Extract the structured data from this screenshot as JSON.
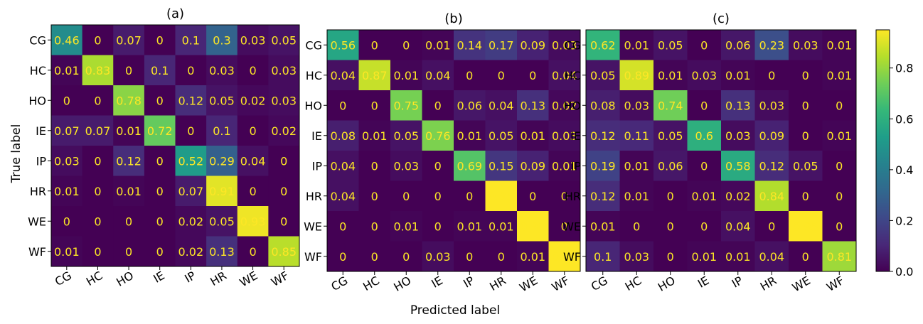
{
  "chart_data": [
    {
      "type": "heatmap",
      "title": "(a)",
      "xlabel": "",
      "ylabel": "True label",
      "x": [
        "CG",
        "HC",
        "HO",
        "IE",
        "IP",
        "HR",
        "WE",
        "WF"
      ],
      "y": [
        "CG",
        "HC",
        "HO",
        "IE",
        "IP",
        "HR",
        "WE",
        "WF"
      ],
      "values": [
        [
          0.46,
          0,
          0.07,
          0,
          0.1,
          0.3,
          0.03,
          0.05
        ],
        [
          0.01,
          0.83,
          0,
          0.1,
          0,
          0.03,
          0,
          0.03
        ],
        [
          0,
          0,
          0.78,
          0,
          0.12,
          0.05,
          0.02,
          0.03
        ],
        [
          0.07,
          0.07,
          0.01,
          0.72,
          0,
          0.1,
          0,
          0.02
        ],
        [
          0.03,
          0,
          0.12,
          0,
          0.52,
          0.29,
          0.04,
          0
        ],
        [
          0.01,
          0,
          0.01,
          0,
          0.07,
          0.91,
          0,
          0
        ],
        [
          0,
          0,
          0,
          0,
          0.02,
          0.05,
          0.93,
          0
        ],
        [
          0.01,
          0,
          0,
          0,
          0.02,
          0.13,
          0,
          0.85
        ]
      ]
    },
    {
      "type": "heatmap",
      "title": "(b)",
      "xlabel": "Predicted label",
      "ylabel": "",
      "x": [
        "CG",
        "HC",
        "HO",
        "IE",
        "IP",
        "HR",
        "WE",
        "WF"
      ],
      "y": [
        "CG",
        "HC",
        "HO",
        "IE",
        "IP",
        "HR",
        "WE",
        "WF"
      ],
      "values": [
        [
          0.56,
          0,
          0,
          0.01,
          0.14,
          0.17,
          0.09,
          0.03
        ],
        [
          0.04,
          0.87,
          0.01,
          0.04,
          0,
          0,
          0,
          0.04
        ],
        [
          0,
          0,
          0.75,
          0,
          0.06,
          0.04,
          0.13,
          0.02
        ],
        [
          0.08,
          0.01,
          0.05,
          0.76,
          0.01,
          0.05,
          0.01,
          0.03
        ],
        [
          0.04,
          0,
          0.03,
          0,
          0.69,
          0.15,
          0.09,
          0.01
        ],
        [
          0.04,
          0,
          0,
          0,
          0,
          0.95,
          0,
          0
        ],
        [
          0,
          0,
          0.01,
          0,
          0.01,
          0.01,
          0.97,
          0
        ],
        [
          0,
          0,
          0,
          0.03,
          0,
          0,
          0.01,
          0.95
        ]
      ]
    },
    {
      "type": "heatmap",
      "title": "(c)",
      "xlabel": "",
      "ylabel": "",
      "x": [
        "CG",
        "HC",
        "HO",
        "IE",
        "IP",
        "HR",
        "WE",
        "WF"
      ],
      "y": [
        "CG",
        "HC",
        "HO",
        "IE",
        "IP",
        "HR",
        "WE",
        "WF"
      ],
      "values": [
        [
          0.62,
          0.01,
          0.05,
          0,
          0.06,
          0.23,
          0.03,
          0.01
        ],
        [
          0.05,
          0.89,
          0.01,
          0.03,
          0.01,
          0,
          0,
          0.01
        ],
        [
          0.08,
          0.03,
          0.74,
          0,
          0.13,
          0.03,
          0,
          0
        ],
        [
          0.12,
          0.11,
          0.05,
          0.6,
          0.03,
          0.09,
          0,
          0.01
        ],
        [
          0.19,
          0.01,
          0.06,
          0,
          0.58,
          0.12,
          0.05,
          0
        ],
        [
          0.12,
          0.01,
          0,
          0.01,
          0.02,
          0.84,
          0,
          0
        ],
        [
          0.01,
          0,
          0,
          0,
          0.04,
          0,
          0.95,
          0
        ],
        [
          0.1,
          0.03,
          0,
          0.01,
          0.01,
          0.04,
          0,
          0.81
        ]
      ]
    }
  ],
  "colorbar": {
    "range": [
      0,
      0.95
    ],
    "ticks": [
      0.0,
      0.2,
      0.4,
      0.6,
      0.8
    ],
    "tick_labels": [
      "0.0",
      "0.2",
      "0.4",
      "0.6",
      "0.8"
    ],
    "colormap": "viridis",
    "colormap_stops": [
      "#440154",
      "#482878",
      "#3e4989",
      "#31688e",
      "#26828e",
      "#1f9e89",
      "#35b779",
      "#6ece58",
      "#b5de2b",
      "#fde725"
    ]
  },
  "colors": {
    "cell_text": "#fde725",
    "axis": "#000000"
  }
}
